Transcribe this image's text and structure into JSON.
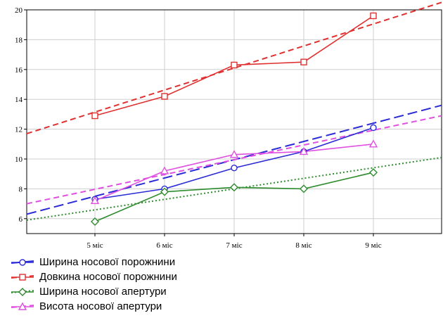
{
  "chart_data": {
    "type": "line",
    "categories": [
      "5 міс",
      "6 міс",
      "7 міс",
      "8 міс",
      "9 міс"
    ],
    "yticks": [
      "6",
      "8",
      "10",
      "12",
      "14",
      "16",
      "18",
      "20"
    ],
    "ylim": [
      5,
      20
    ],
    "grid": true,
    "legend_position": "bottom-left",
    "series": [
      {
        "name": "Ширина носової порожнини",
        "values": [
          7.3,
          8.0,
          9.4,
          10.5,
          12.1
        ],
        "color": "#2b2bd6",
        "marker": "circle",
        "trend": {
          "dash": "long-dash",
          "start": 6.3,
          "end": 13.6
        }
      },
      {
        "name": "Довкина носової порожнини",
        "values": [
          12.9,
          14.2,
          16.3,
          16.5,
          19.6
        ],
        "color": "#e03030",
        "marker": "square",
        "trend": {
          "dash": "dash",
          "start": 11.7,
          "end": 20.5
        }
      },
      {
        "name": "Ширина носової апертури",
        "values": [
          5.8,
          7.8,
          8.1,
          8.0,
          9.1
        ],
        "color": "#2e8b2e",
        "marker": "diamond",
        "trend": {
          "dash": "dot",
          "start": 5.9,
          "end": 10.1
        }
      },
      {
        "name": "Висота носової апертури",
        "values": [
          7.2,
          9.2,
          10.3,
          10.5,
          11.0
        ],
        "color": "#e050e0",
        "marker": "triangle",
        "trend": {
          "dash": "dash",
          "start": 7.0,
          "end": 12.9
        }
      }
    ]
  }
}
